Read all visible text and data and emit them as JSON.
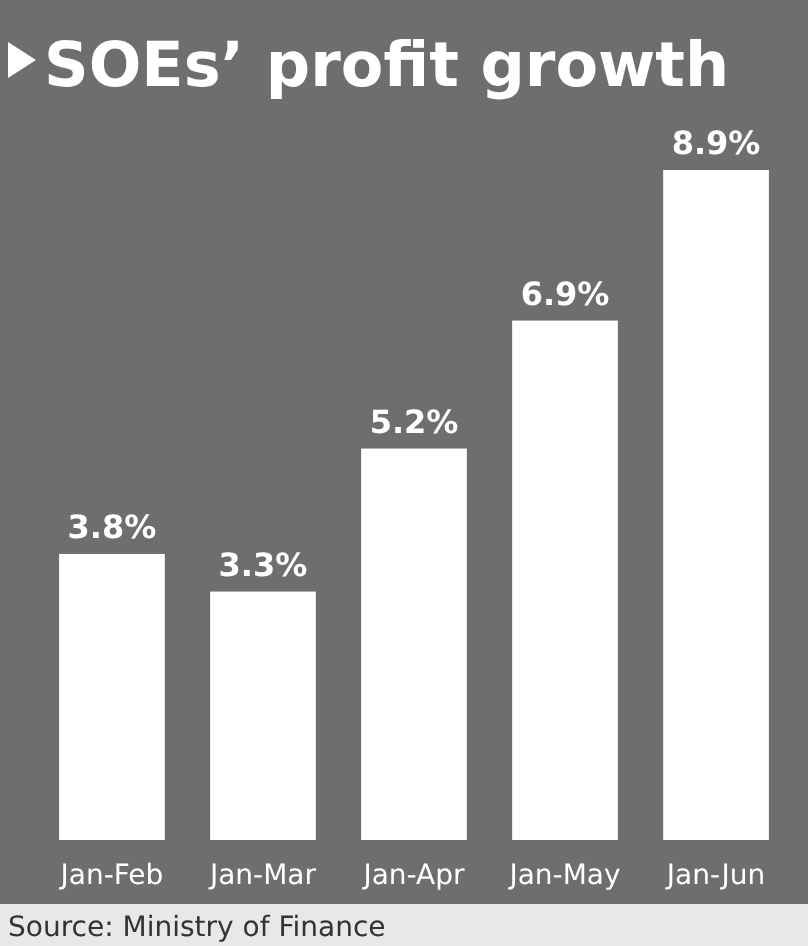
{
  "chart_data": {
    "type": "bar",
    "title": "SOEs’ profit growth",
    "categories": [
      "Jan-Feb",
      "Jan-Mar",
      "Jan-Apr",
      "Jan-May",
      "Jan-Jun"
    ],
    "values": [
      3.8,
      3.3,
      5.2,
      6.9,
      8.9
    ],
    "value_labels": [
      "3.8%",
      "3.3%",
      "5.2%",
      "6.9%",
      "8.9%"
    ],
    "color": "#ffffff",
    "annotations": [
      "Source: Ministry of Finance"
    ]
  }
}
